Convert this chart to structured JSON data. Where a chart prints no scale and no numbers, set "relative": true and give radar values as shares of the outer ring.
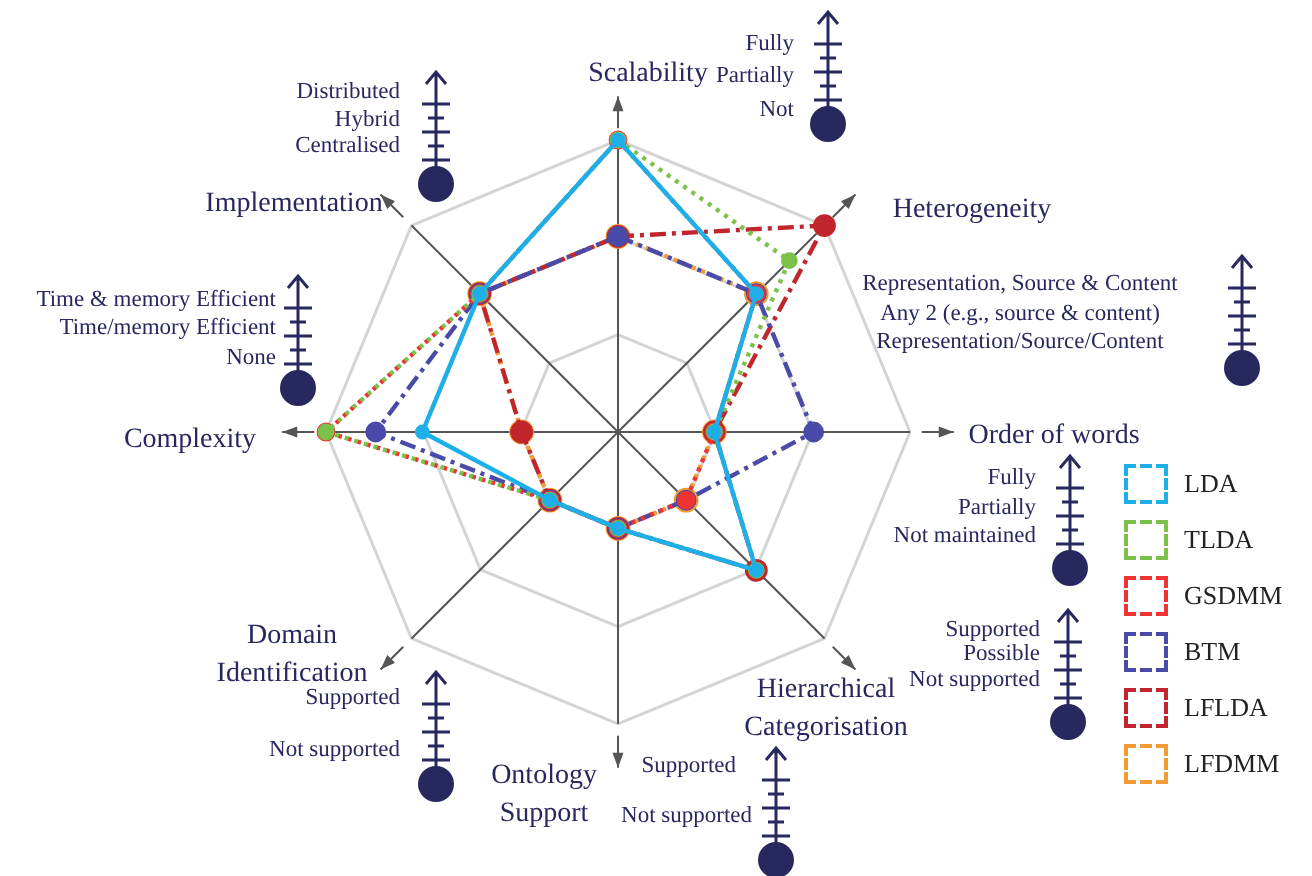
{
  "chart_data": {
    "type": "radar",
    "relative": true,
    "grid": true,
    "legend": "bottom right",
    "marker": "circle",
    "categories": [
      "Scalability",
      "Heterogeneity",
      "Order of words",
      "Hierarchical Categorisation",
      "Ontology Support",
      "Domain Identification",
      "Complexity",
      "Implementation"
    ],
    "series": [
      {
        "name": "LDA",
        "color": "#1eaee8",
        "line_style": "solid",
        "values": [
          1,
          0.67,
          0.33,
          0.67,
          0.33,
          0.33,
          0.67,
          0.67
        ]
      },
      {
        "name": "TLDA",
        "color": "#7cc24a",
        "line_style": "dotted",
        "values": [
          1,
          0.83,
          0.33,
          0.67,
          0.33,
          0.33,
          1,
          0.67
        ]
      },
      {
        "name": "GSDMM",
        "color": "#ee3333",
        "line_style": "dotted",
        "values": [
          1,
          0.67,
          0.33,
          0.33,
          0.33,
          0.33,
          1,
          0.67
        ]
      },
      {
        "name": "BTM",
        "color": "#4a4aa8",
        "line_style": "dashdot",
        "values": [
          0.67,
          0.67,
          0.67,
          0.33,
          0.33,
          0.33,
          0.83,
          0.67
        ]
      },
      {
        "name": "LFLDA",
        "color": "#c0262c",
        "line_style": "dashdot",
        "values": [
          0.67,
          1,
          0.33,
          0.67,
          0.33,
          0.33,
          0.33,
          0.67
        ]
      },
      {
        "name": "LFDMM",
        "color": "#f39c33",
        "line_style": "dotted",
        "values": [
          0.67,
          0.67,
          0.33,
          0.33,
          0.33,
          0.33,
          0.33,
          0.67
        ]
      }
    ],
    "annotations": [
      "Fully",
      "Partially",
      "Not",
      "Representation, Source & Content",
      "Any 2 (e.g., source & content)",
      "Representation/Source/Content",
      "Fully",
      "Partially",
      "Not maintained",
      "Supported",
      "Possible",
      "Not supported",
      "Supported",
      "Not supported",
      "Supported",
      "Not supported",
      "Time & memory Efficient",
      "Time/memory Efficient",
      "None",
      "Distributed",
      "Hybrid",
      "Centralised"
    ]
  }
}
